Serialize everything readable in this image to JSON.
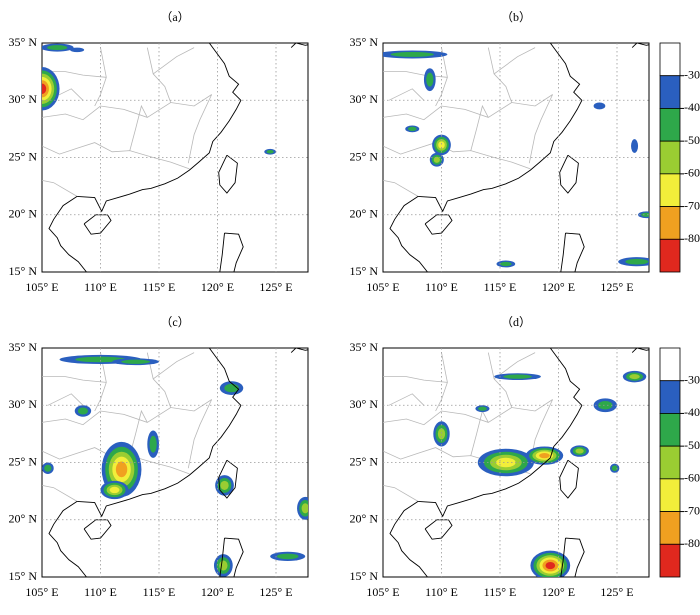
{
  "panels": [
    {
      "label": "（a）"
    },
    {
      "label": "（b）"
    },
    {
      "label": "（c）"
    },
    {
      "label": "（d）"
    }
  ],
  "x_tick_labels": [
    "105° E",
    "110° E",
    "115° E",
    "120° E",
    "125° E"
  ],
  "y_tick_labels": [
    "35° N",
    "30° N",
    "25° N",
    "20° N",
    "15° N"
  ],
  "colorbar": {
    "labels": [
      "-30",
      "-40",
      "-50",
      "-60",
      "-70",
      "-80"
    ],
    "colors": [
      "#ffffff",
      "#2a5fbf",
      "#2ea84a",
      "#9acd32",
      "#f2ee3a",
      "#f0a020",
      "#e0281e"
    ]
  }
}
